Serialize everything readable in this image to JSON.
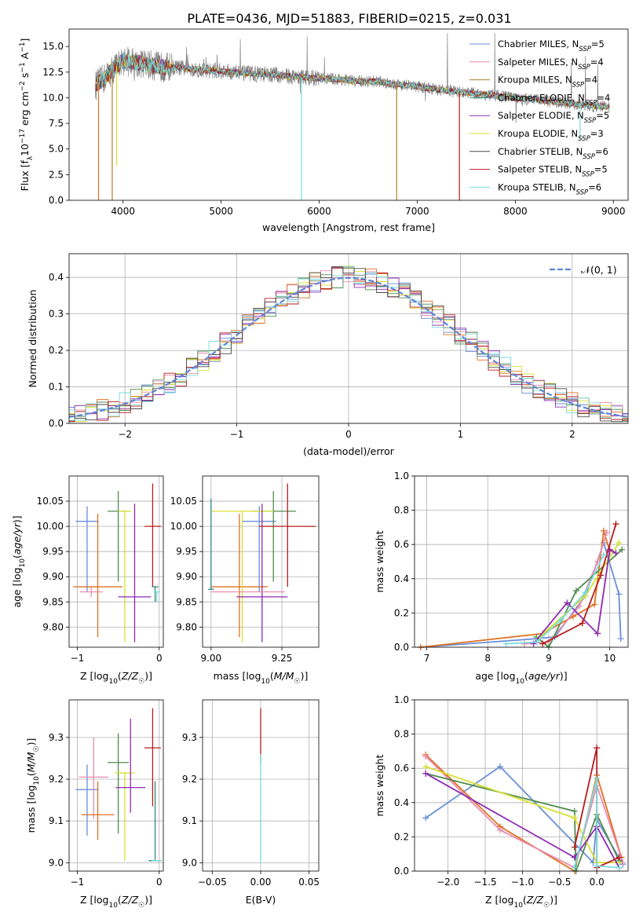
{
  "title": "PLATE=0436, MJD=51883, FIBERID=0215, z=0.031",
  "colors": {
    "c1": "#6a8fd8",
    "c2": "#e98bb0",
    "c3": "#b07f28",
    "c4": "#2c8a82",
    "c5": "#8e2ab2",
    "c6": "#d8e030",
    "c7": "#4a4a4a",
    "c8": "#b81c1c",
    "c9": "#78dcdc",
    "orange": "#e07020",
    "green": "#4f8c4f",
    "spectrum": "#808080",
    "gaussian": "#5e86d6"
  },
  "chart_data": [
    {
      "id": "spectrum",
      "type": "line",
      "xlabel": "wavelength [Angstrom, rest frame]",
      "ylabel": "Flux [f_λ 10^-17 erg cm^-2 s^-1 A^-1]",
      "xlim": [
        3450,
        9150
      ],
      "ylim": [
        0,
        16.7
      ],
      "xticks": [
        4000,
        5000,
        6000,
        7000,
        8000,
        9000
      ],
      "yticks": [
        0.0,
        2.5,
        5.0,
        7.5,
        10.0,
        12.5,
        15.0
      ],
      "ytick_labels": [
        "0.0",
        "2.5",
        "5.0",
        "7.5",
        "10.0",
        "12.5",
        "15.0"
      ],
      "legend_position": "top-right",
      "series": [
        {
          "name": "Chabrier MILES, N_SSP=5",
          "color_key": "c1"
        },
        {
          "name": "Salpeter MILES, N_SSP=4",
          "color_key": "c2"
        },
        {
          "name": "Kroupa MILES, N_SSP=4",
          "color_key": "c3"
        },
        {
          "name": "Chabrier ELODIE, N_SSP=4",
          "color_key": "c4"
        },
        {
          "name": "Salpeter ELODIE, N_SSP=5",
          "color_key": "c5"
        },
        {
          "name": "Kroupa ELODIE, N_SSP=3",
          "color_key": "c6"
        },
        {
          "name": "Chabrier STELIB, N_SSP=6",
          "color_key": "c7"
        },
        {
          "name": "Salpeter STELIB, N_SSP=5",
          "color_key": "c8"
        },
        {
          "name": "Kroupa STELIB, N_SSP=6",
          "color_key": "c9"
        }
      ],
      "continuum": {
        "x": [
          3720,
          3800,
          3900,
          4000,
          4100,
          4200,
          4400,
          4600,
          4800,
          5000,
          5200,
          5400,
          5600,
          5800,
          6000,
          6200,
          6400,
          6600,
          6800,
          7000,
          7200,
          7400,
          7600,
          7800,
          8000,
          8200,
          8400,
          8600,
          8800,
          9000
        ],
        "y": [
          11.2,
          11.8,
          12.8,
          13.6,
          13.5,
          13.3,
          13.0,
          12.9,
          12.7,
          12.6,
          12.4,
          12.3,
          12.2,
          12.0,
          11.9,
          11.8,
          11.6,
          11.6,
          11.3,
          11.1,
          10.8,
          10.6,
          10.4,
          10.2,
          10.0,
          9.8,
          9.6,
          9.4,
          9.2,
          9.1
        ]
      },
      "dips": [
        {
          "x": 3750,
          "y": 0.0,
          "color_key": "orange"
        },
        {
          "x": 3890,
          "y": 0.0,
          "color_key": "c3"
        },
        {
          "x": 3935,
          "y": 3.4,
          "color_key": "c6"
        },
        {
          "x": 5820,
          "y": 0.0,
          "color_key": "c9"
        },
        {
          "x": 6790,
          "y": 0.0,
          "color_key": "c3"
        },
        {
          "x": 7430,
          "y": 0.0,
          "color_key": "c8"
        },
        {
          "x": 8660,
          "y": 6.0,
          "color_key": "c9"
        }
      ]
    },
    {
      "id": "residuals",
      "type": "histogram",
      "xlabel": "(data-model)/error",
      "ylabel": "Normed distribution",
      "xlim": [
        -2.5,
        2.5
      ],
      "ylim": [
        0,
        0.465
      ],
      "xticks": [
        -2,
        -1,
        0,
        1,
        2
      ],
      "yticks": [
        0.0,
        0.1,
        0.2,
        0.3,
        0.4
      ],
      "ytick_labels": [
        "0.0",
        "0.1",
        "0.2",
        "0.3",
        "0.4"
      ],
      "grid": true,
      "gaussian": {
        "name": "𝒩(0, 1)",
        "mean": 0,
        "sigma": 1,
        "legend_position": "top-right"
      }
    },
    {
      "id": "age_vs_Z",
      "type": "errorbar",
      "xlabel": "Z [log10(Z/Z☉)]",
      "ylabel": "age  [log10(age/yr)]",
      "xlim": [
        -1.1,
        0.05
      ],
      "ylim": [
        9.76,
        10.1
      ],
      "xticks": [
        -1,
        0
      ],
      "yticks": [
        9.8,
        9.85,
        9.9,
        9.95,
        10.0,
        10.05
      ],
      "ytick_labels": [
        "9.80",
        "9.85",
        "9.90",
        "9.95",
        "10.00",
        "10.05"
      ],
      "points": [
        {
          "x": -0.88,
          "y": 10.01,
          "xerr": 0.14,
          "yerr_lo": 0.14,
          "yerr_hi": 0.03,
          "color_key": "c1"
        },
        {
          "x": -0.83,
          "y": 9.87,
          "xerr": 0.14,
          "yerr_lo": 0.01,
          "yerr_hi": 0.01,
          "color_key": "c2"
        },
        {
          "x": -0.75,
          "y": 9.88,
          "xerr": 0.3,
          "yerr_lo": 0.1,
          "yerr_hi": 0.145,
          "color_key": "orange"
        },
        {
          "x": -0.5,
          "y": 10.03,
          "xerr": 0.13,
          "yerr_lo": 0.14,
          "yerr_hi": 0.04,
          "color_key": "green"
        },
        {
          "x": -0.42,
          "y": 10.03,
          "xerr": 0.08,
          "yerr_lo": 0.26,
          "yerr_hi": 0.0,
          "color_key": "c6"
        },
        {
          "x": -0.3,
          "y": 9.86,
          "xerr": 0.2,
          "yerr_lo": 0.09,
          "yerr_hi": 0.185,
          "color_key": "c5"
        },
        {
          "x": -0.08,
          "y": 10.0,
          "xerr": 0.1,
          "yerr_lo": 0.12,
          "yerr_hi": 0.085,
          "color_key": "c8"
        },
        {
          "x": -0.05,
          "y": 9.88,
          "xerr": 0.04,
          "yerr_lo": 0.03,
          "yerr_hi": 0.0,
          "color_key": "c4"
        },
        {
          "x": -0.03,
          "y": 9.87,
          "xerr": 0.04,
          "yerr_lo": 0.02,
          "yerr_hi": 0.0,
          "color_key": "c9"
        }
      ]
    },
    {
      "id": "age_vs_mass",
      "type": "errorbar",
      "xlabel": "mass [log10(M/M☉)]",
      "ylabel": "",
      "xlim": [
        8.97,
        9.38
      ],
      "ylim": [
        9.76,
        10.1
      ],
      "xticks": [
        9.0,
        9.25
      ],
      "xtick_labels": [
        "9.00",
        "9.25"
      ],
      "yticks": [
        9.8,
        9.85,
        9.9,
        9.95,
        10.0,
        10.05
      ],
      "ytick_labels": [
        "9.80",
        "9.85",
        "9.90",
        "9.95",
        "10.00",
        "10.05"
      ],
      "points": [
        {
          "x": 9.17,
          "y": 10.01,
          "xerr": 0.06,
          "yerr_lo": 0.14,
          "yerr_hi": 0.03,
          "color_key": "c1"
        },
        {
          "x": 9.1,
          "y": 9.88,
          "xerr": 0.1,
          "yerr_lo": 0.1,
          "yerr_hi": 0.145,
          "color_key": "orange"
        },
        {
          "x": 9.22,
          "y": 10.03,
          "xerr": 0.08,
          "yerr_lo": 0.14,
          "yerr_hi": 0.04,
          "color_key": "green"
        },
        {
          "x": 9.11,
          "y": 10.03,
          "xerr": 0.11,
          "yerr_lo": 0.26,
          "yerr_hi": 0.0,
          "color_key": "c6"
        },
        {
          "x": 9.18,
          "y": 9.86,
          "xerr": 0.09,
          "yerr_lo": 0.09,
          "yerr_hi": 0.185,
          "color_key": "c5"
        },
        {
          "x": 9.27,
          "y": 10.0,
          "xerr": 0.1,
          "yerr_lo": 0.12,
          "yerr_hi": 0.085,
          "color_key": "c8"
        },
        {
          "x": 9.13,
          "y": 9.87,
          "xerr": 0.13,
          "yerr_lo": 0.0,
          "yerr_hi": 0.0,
          "color_key": "c2"
        },
        {
          "x": 9.0,
          "y": 9.875,
          "xerr": 0.01,
          "yerr_lo": 0.0,
          "yerr_hi": 0.18,
          "color_key": "c4"
        }
      ]
    },
    {
      "id": "weight_vs_age",
      "type": "line",
      "xlabel": "age  [log10(age/yr)]",
      "ylabel": "mass weight",
      "xlim": [
        6.8,
        10.3
      ],
      "ylim": [
        0,
        1.0
      ],
      "xticks": [
        7,
        8,
        9,
        10
      ],
      "yticks": [
        0.0,
        0.2,
        0.4,
        0.6,
        0.8,
        1.0
      ],
      "ytick_labels": [
        "0.0",
        "0.2",
        "0.4",
        "0.6",
        "0.8",
        "1.0"
      ],
      "series": [
        {
          "color_key": "c1",
          "x": [
            6.9,
            8.8,
            9.1,
            9.6,
            9.9,
            10.15,
            10.18
          ],
          "y": [
            0.0,
            0.05,
            0.06,
            0.3,
            0.61,
            0.31,
            0.05
          ]
        },
        {
          "color_key": "orange",
          "x": [
            6.9,
            8.9,
            9.4,
            9.75,
            9.9,
            10.0
          ],
          "y": [
            0.0,
            0.08,
            0.18,
            0.25,
            0.68,
            0.56
          ]
        },
        {
          "color_key": "c2",
          "x": [
            8.6,
            9.0,
            9.5,
            9.8,
            9.95
          ],
          "y": [
            0.02,
            0.03,
            0.24,
            0.5,
            0.67
          ]
        },
        {
          "color_key": "green",
          "x": [
            8.8,
            9.0,
            9.45,
            10.2
          ],
          "y": [
            0.06,
            0.0,
            0.33,
            0.57
          ]
        },
        {
          "color_key": "c6",
          "x": [
            8.85,
            9.6,
            10.15
          ],
          "y": [
            0.06,
            0.3,
            0.61
          ]
        },
        {
          "color_key": "c5",
          "x": [
            8.75,
            9.3,
            9.8,
            10.0,
            10.1
          ],
          "y": [
            0.02,
            0.26,
            0.08,
            0.57,
            0.55
          ]
        },
        {
          "color_key": "c8",
          "x": [
            8.9,
            9.55,
            9.85,
            10.1
          ],
          "y": [
            0.02,
            0.14,
            0.42,
            0.72
          ]
        },
        {
          "color_key": "c9",
          "x": [
            8.3,
            8.8,
            9.2,
            9.6,
            9.9
          ],
          "y": [
            0.02,
            0.03,
            0.16,
            0.32,
            0.54
          ]
        }
      ]
    },
    {
      "id": "mass_vs_Z",
      "type": "errorbar",
      "xlabel": "Z [log10(Z/Z☉)]",
      "ylabel": "mass [log10(M/M☉)]",
      "xlim": [
        -1.1,
        0.05
      ],
      "ylim": [
        8.98,
        9.39
      ],
      "xticks": [
        -1,
        0
      ],
      "yticks": [
        9.0,
        9.1,
        9.2,
        9.3
      ],
      "ytick_labels": [
        "9.0",
        "9.1",
        "9.2",
        "9.3"
      ],
      "points": [
        {
          "x": -0.88,
          "y": 9.175,
          "xerr": 0.14,
          "yerr_lo": 0.11,
          "yerr_hi": 0.06,
          "color_key": "c1"
        },
        {
          "x": -0.8,
          "y": 9.205,
          "xerr": 0.18,
          "yerr_lo": 0.1,
          "yerr_hi": 0.095,
          "color_key": "c2"
        },
        {
          "x": -0.75,
          "y": 9.115,
          "xerr": 0.2,
          "yerr_lo": 0.06,
          "yerr_hi": 0.08,
          "color_key": "orange"
        },
        {
          "x": -0.5,
          "y": 9.24,
          "xerr": 0.13,
          "yerr_lo": 0.17,
          "yerr_hi": 0.07,
          "color_key": "green"
        },
        {
          "x": -0.42,
          "y": 9.215,
          "xerr": 0.12,
          "yerr_lo": 0.21,
          "yerr_hi": 0.0,
          "color_key": "c6"
        },
        {
          "x": -0.35,
          "y": 9.18,
          "xerr": 0.18,
          "yerr_lo": 0.06,
          "yerr_hi": 0.165,
          "color_key": "c5"
        },
        {
          "x": -0.08,
          "y": 9.275,
          "xerr": 0.1,
          "yerr_lo": 0.14,
          "yerr_hi": 0.095,
          "color_key": "c8"
        },
        {
          "x": -0.05,
          "y": 9.005,
          "xerr": 0.08,
          "yerr_lo": 0.0,
          "yerr_hi": 0.19,
          "color_key": "c4"
        },
        {
          "x": -0.03,
          "y": 9.005,
          "xerr": 0.06,
          "yerr_lo": 0.0,
          "yerr_hi": 0.0,
          "color_key": "c9"
        }
      ]
    },
    {
      "id": "mass_vs_ebv",
      "type": "errorbar",
      "xlabel": "E(B-V)",
      "ylabel": "",
      "xlim": [
        -0.06,
        0.06
      ],
      "ylim": [
        8.98,
        9.39
      ],
      "xticks": [
        -0.05,
        0.0,
        0.05
      ],
      "xtick_labels": [
        "−0.05",
        "0.00",
        "0.05"
      ],
      "yticks": [
        9.0,
        9.1,
        9.2,
        9.3
      ],
      "ytick_labels": [
        "9.0",
        "9.1",
        "9.2",
        "9.3"
      ],
      "points": [
        {
          "x": 0.0,
          "y": 9.3,
          "xerr": 0.0,
          "yerr_lo": 0.06,
          "yerr_hi": 0.07,
          "color_key": "c8"
        },
        {
          "x": 0.0,
          "y": 9.2,
          "xerr": 0.0,
          "yerr_lo": 0.2,
          "yerr_hi": 0.06,
          "color_key": "c9"
        }
      ]
    },
    {
      "id": "weight_vs_Z",
      "type": "line",
      "xlabel": "Z [log10(Z/Z☉)]",
      "ylabel": "mass weight",
      "xlim": [
        -2.45,
        0.42
      ],
      "ylim": [
        0,
        1.0
      ],
      "xticks": [
        -2.0,
        -1.5,
        -1.0,
        -0.5,
        0.0
      ],
      "xtick_labels": [
        "−2.0",
        "−1.5",
        "−1.0",
        "−0.5",
        "0.0"
      ],
      "yticks": [
        0.0,
        0.2,
        0.4,
        0.6,
        0.8,
        1.0
      ],
      "ytick_labels": [
        "0.0",
        "0.2",
        "0.4",
        "0.6",
        "0.8",
        "1.0"
      ],
      "series": [
        {
          "color_key": "c1",
          "x": [
            -2.3,
            -1.3,
            -0.05,
            0.0,
            0.35
          ],
          "y": [
            0.31,
            0.61,
            0.05,
            0.3,
            0.04
          ]
        },
        {
          "color_key": "orange",
          "x": [
            -2.3,
            -1.3,
            -0.3,
            0.0,
            0.33
          ],
          "y": [
            0.68,
            0.26,
            0.0,
            0.56,
            0.08
          ]
        },
        {
          "color_key": "c2",
          "x": [
            -2.3,
            -1.3,
            -0.3,
            0.0,
            0.35
          ],
          "y": [
            0.67,
            0.24,
            0.02,
            0.5,
            0.05
          ]
        },
        {
          "color_key": "green",
          "x": [
            -2.3,
            -0.3,
            -0.28,
            0.0,
            0.3
          ],
          "y": [
            0.57,
            0.35,
            0.0,
            0.33,
            0.06
          ]
        },
        {
          "color_key": "c6",
          "x": [
            -2.3,
            -0.3,
            0.0,
            0.3
          ],
          "y": [
            0.61,
            0.31,
            0.05,
            0.05
          ]
        },
        {
          "color_key": "c5",
          "x": [
            -2.3,
            -0.3,
            0.0,
            0.3
          ],
          "y": [
            0.57,
            0.08,
            0.26,
            0.02
          ]
        },
        {
          "color_key": "c8",
          "x": [
            -0.3,
            0.0,
            0.0,
            0.3
          ],
          "y": [
            0.14,
            0.72,
            0.02,
            0.08
          ]
        },
        {
          "color_key": "c9",
          "x": [
            -0.3,
            0.0,
            0.0,
            0.3
          ],
          "y": [
            0.02,
            0.54,
            0.03,
            0.02
          ]
        }
      ]
    }
  ]
}
